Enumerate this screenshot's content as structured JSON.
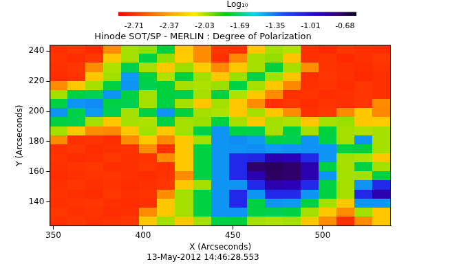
{
  "chart_data": {
    "type": "heatmap",
    "title": "Hinode SOT/SP - MERLIN : Degree of Polarization",
    "xlabel": "X (Arcseconds)",
    "ylabel": "Y (Arcseconds)",
    "annotations": [
      "13-May-2012 14:46:28.553"
    ],
    "xlim": [
      348,
      538
    ],
    "ylim": [
      124,
      244
    ],
    "xticks": [
      350,
      400,
      450,
      500
    ],
    "yticks": [
      140,
      160,
      180,
      200,
      220,
      240
    ],
    "grid": false,
    "colorbar": {
      "label": "Log₁₀",
      "range": [
        -2.86,
        -0.57
      ],
      "ticks": [
        -2.71,
        -2.37,
        -2.03,
        -1.69,
        -1.35,
        -1.01,
        -0.68
      ]
    },
    "x": [
      353,
      363,
      373,
      383,
      393,
      403,
      413,
      423,
      433,
      443,
      453,
      463,
      473,
      483,
      493,
      503,
      513,
      523,
      533
    ],
    "y": [
      241,
      235,
      229,
      223,
      217,
      211,
      205,
      199,
      193,
      187,
      181,
      175,
      169,
      163,
      157,
      151,
      145,
      139,
      133,
      127
    ],
    "values": [
      [
        -2.72,
        -2.7,
        -2.74,
        -2.45,
        -2.02,
        -2.0,
        -1.76,
        -2.25,
        -2.45,
        -2.7,
        -2.72,
        -2.25,
        -2.02,
        -2.04,
        -2.72,
        -2.74,
        -2.7,
        -2.72,
        -2.73
      ],
      [
        -2.71,
        -2.73,
        -2.7,
        -2.25,
        -2.02,
        -1.75,
        -2.0,
        -2.24,
        -2.45,
        -2.72,
        -2.46,
        -2.02,
        -2.0,
        -2.26,
        -2.72,
        -2.71,
        -2.74,
        -2.72,
        -2.7
      ],
      [
        -2.72,
        -2.7,
        -2.45,
        -2.03,
        -1.74,
        -2.02,
        -2.25,
        -2.01,
        -2.24,
        -2.46,
        -2.25,
        -2.02,
        -1.76,
        -2.02,
        -2.44,
        -2.71,
        -2.72,
        -2.73,
        -2.71
      ],
      [
        -2.73,
        -2.71,
        -2.25,
        -2.02,
        -1.43,
        -1.75,
        -2.03,
        -1.76,
        -2.02,
        -2.25,
        -2.01,
        -1.75,
        -2.02,
        -2.26,
        -2.72,
        -2.7,
        -2.72,
        -2.74,
        -2.72
      ],
      [
        -2.45,
        -2.25,
        -2.02,
        -1.75,
        -1.42,
        -1.74,
        -1.76,
        -2.02,
        -2.03,
        -2.01,
        -1.75,
        -2.02,
        -2.25,
        -2.46,
        -2.72,
        -2.71,
        -2.73,
        -2.7,
        -2.72
      ],
      [
        -2.02,
        -1.75,
        -1.73,
        -1.42,
        -1.75,
        -2.02,
        -1.76,
        -1.74,
        -2.02,
        -1.75,
        -2.03,
        -2.25,
        -2.45,
        -2.72,
        -2.71,
        -2.73,
        -2.72,
        -2.7,
        -2.72
      ],
      [
        -1.75,
        -1.42,
        -1.4,
        -1.75,
        -1.74,
        -2.02,
        -1.75,
        -2.02,
        -2.25,
        -2.02,
        -2.25,
        -2.45,
        -2.72,
        -2.7,
        -2.73,
        -2.71,
        -2.72,
        -2.7,
        -2.45
      ],
      [
        -1.42,
        -1.75,
        -1.43,
        -1.74,
        -2.02,
        -1.75,
        -1.42,
        -1.76,
        -2.02,
        -2.03,
        -2.25,
        -2.02,
        -2.25,
        -2.45,
        -2.72,
        -2.7,
        -2.45,
        -2.25,
        -2.46
      ],
      [
        -1.75,
        -1.74,
        -2.02,
        -2.25,
        -2.02,
        -2.03,
        -1.75,
        -2.02,
        -2.01,
        -1.75,
        -2.02,
        -2.25,
        -2.02,
        -2.03,
        -2.25,
        -2.02,
        -2.01,
        -2.25,
        -2.24
      ],
      [
        -2.02,
        -2.25,
        -2.45,
        -2.46,
        -2.25,
        -2.02,
        -2.25,
        -2.02,
        -1.75,
        -1.42,
        -1.75,
        -1.74,
        -2.02,
        -1.75,
        -2.02,
        -1.76,
        -2.02,
        -2.03,
        -2.02
      ],
      [
        -2.45,
        -2.72,
        -2.71,
        -2.73,
        -2.45,
        -2.25,
        -2.46,
        -2.25,
        -2.02,
        -1.42,
        -1.4,
        -1.43,
        -1.75,
        -1.74,
        -1.42,
        -1.75,
        -2.02,
        -1.42,
        -2.02
      ],
      [
        -2.72,
        -2.7,
        -2.73,
        -2.72,
        -2.71,
        -2.45,
        -2.72,
        -2.25,
        -1.75,
        -1.42,
        -1.41,
        -1.4,
        -1.43,
        -1.42,
        -1.41,
        -1.42,
        -1.75,
        -1.76,
        -2.02
      ],
      [
        -2.71,
        -2.73,
        -2.72,
        -2.7,
        -2.72,
        -2.71,
        -2.45,
        -2.25,
        -1.75,
        -1.42,
        -1.12,
        -1.1,
        -0.88,
        -0.9,
        -1.12,
        -1.42,
        -2.02,
        -2.03,
        -2.25
      ],
      [
        -2.72,
        -2.71,
        -2.7,
        -2.73,
        -2.72,
        -2.7,
        -2.72,
        -2.25,
        -1.75,
        -1.42,
        -1.12,
        -0.72,
        -0.7,
        -0.72,
        -0.88,
        -1.75,
        -2.02,
        -1.75,
        -2.02
      ],
      [
        -2.73,
        -2.72,
        -2.71,
        -2.7,
        -2.72,
        -2.73,
        -2.71,
        -2.45,
        -1.75,
        -1.42,
        -1.12,
        -0.88,
        -0.71,
        -0.72,
        -0.88,
        -1.42,
        -2.02,
        -2.02,
        -1.75
      ],
      [
        -2.72,
        -2.7,
        -2.72,
        -2.71,
        -2.73,
        -2.72,
        -2.7,
        -2.25,
        -2.02,
        -1.42,
        -1.42,
        -1.12,
        -0.88,
        -0.9,
        -1.12,
        -1.75,
        -2.02,
        -1.42,
        -1.12
      ],
      [
        -2.71,
        -2.72,
        -2.73,
        -2.7,
        -2.72,
        -2.71,
        -2.45,
        -2.02,
        -1.75,
        -1.42,
        -1.12,
        -1.42,
        -1.12,
        -1.13,
        -1.42,
        -1.75,
        -2.02,
        -1.12,
        -0.88
      ],
      [
        -2.72,
        -2.71,
        -2.7,
        -2.72,
        -2.73,
        -2.72,
        -2.25,
        -2.02,
        -1.75,
        -1.42,
        -1.12,
        -1.75,
        -1.42,
        -1.43,
        -1.75,
        -2.02,
        -2.25,
        -1.42,
        -1.42
      ],
      [
        -2.7,
        -2.72,
        -2.71,
        -2.73,
        -2.72,
        -2.45,
        -2.25,
        -2.02,
        -1.75,
        -1.42,
        -1.42,
        -1.75,
        -1.74,
        -1.75,
        -2.02,
        -2.25,
        -2.45,
        -2.02,
        -2.25
      ],
      [
        -2.72,
        -2.7,
        -2.72,
        -2.71,
        -2.7,
        -2.25,
        -2.02,
        -2.25,
        -2.02,
        -1.75,
        -1.76,
        -2.02,
        -2.03,
        -2.02,
        -2.25,
        -2.45,
        -2.72,
        -2.45,
        -2.25
      ]
    ]
  }
}
